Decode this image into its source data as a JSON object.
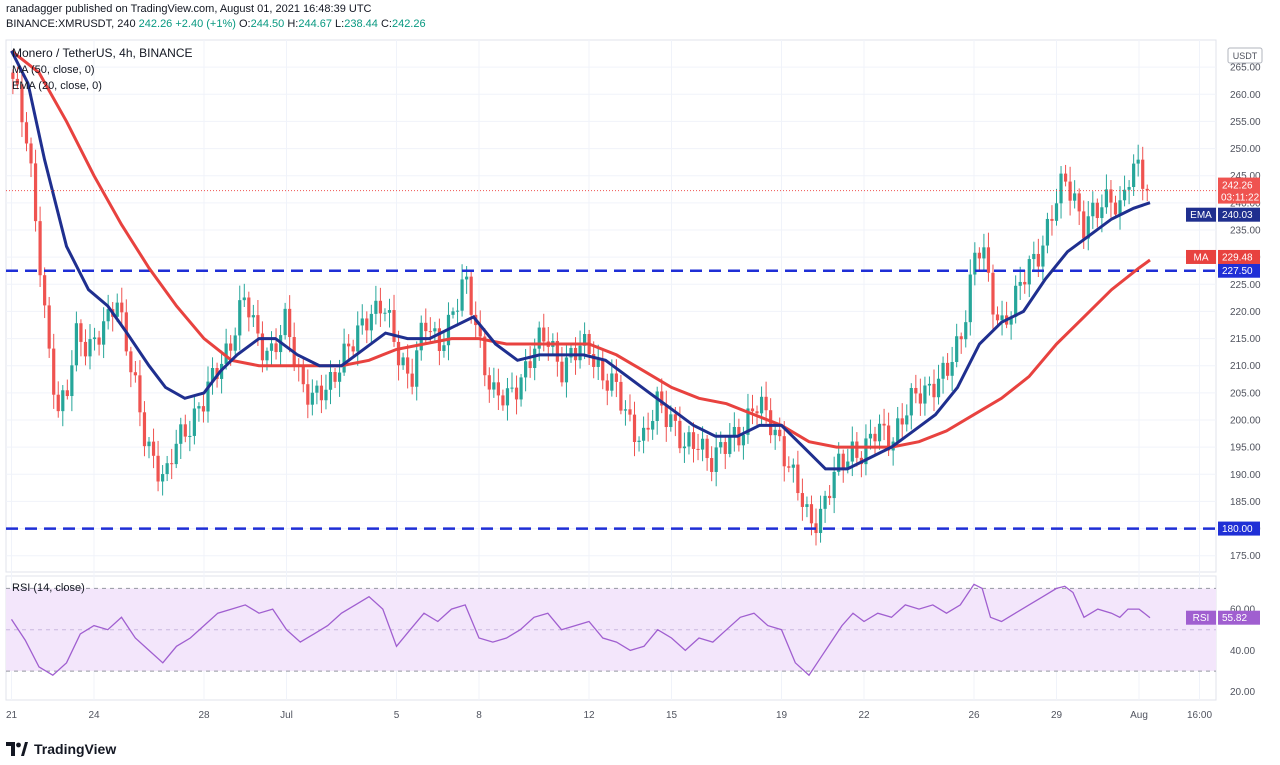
{
  "header": {
    "published": "ranadagger published on TradingView.com, August 01, 2021 16:48:39 UTC",
    "symbol": "BINANCE:XMRUSDT, 240",
    "last": "242.26",
    "change": "+2.40 (+1%)",
    "o_label": "O:",
    "o_value": "244.50",
    "h_label": "H:",
    "h_value": "244.67",
    "l_label": "L:",
    "l_value": "238.44",
    "c_label": "C:",
    "c_value": "242.26"
  },
  "legend": {
    "title": "Monero / TetherUS, 4h, BINANCE",
    "ma": "MA (50, close, 0)",
    "ema": "EMA (20, close, 0)",
    "rsi": "RSI (14, close)"
  },
  "footer": {
    "brand": "TradingView"
  },
  "colors": {
    "ema": "#1f2f8f",
    "ma": "#e8423f",
    "support": "#1f2fd6",
    "up": "#26a69a",
    "down": "#ef5350",
    "rsi": "#a05fd0",
    "rsi_band": "#f3e6fb"
  },
  "chart_data": {
    "type": "candlestick",
    "title": "Monero / TetherUS, 4h, BINANCE",
    "currency_label": "USDT",
    "y_range": [
      172,
      270
    ],
    "y_ticks": [
      175,
      180,
      185,
      190,
      195,
      200,
      205,
      210,
      215,
      220,
      225,
      230,
      235,
      240,
      245,
      250,
      255,
      260,
      265
    ],
    "x_ticks": [
      {
        "label": "21",
        "day": 0
      },
      {
        "label": "24",
        "day": 3
      },
      {
        "label": "28",
        "day": 7
      },
      {
        "label": "Jul",
        "day": 10
      },
      {
        "label": "5",
        "day": 14
      },
      {
        "label": "8",
        "day": 17
      },
      {
        "label": "12",
        "day": 21
      },
      {
        "label": "15",
        "day": 24
      },
      {
        "label": "19",
        "day": 28
      },
      {
        "label": "22",
        "day": 31
      },
      {
        "label": "26",
        "day": 35
      },
      {
        "label": "29",
        "day": 38
      },
      {
        "label": "Aug",
        "day": 41
      },
      {
        "label": "16:00",
        "day": 43.2
      }
    ],
    "day_range": [
      -0.2,
      43.8
    ],
    "support_levels": [
      {
        "value": 227.5,
        "label": "227.50"
      },
      {
        "value": 180.0,
        "label": "180.00"
      }
    ],
    "price_tags": [
      {
        "label": "242.26",
        "sub": "03:11:22",
        "value": 242.26,
        "type": "last"
      },
      {
        "label": "240.03",
        "name": "EMA",
        "value": 240.03,
        "type": "ema"
      },
      {
        "label": "229.48",
        "name": "MA",
        "value": 229.48,
        "type": "ma"
      }
    ],
    "close_path": [
      [
        0,
        264
      ],
      [
        0.6,
        250
      ],
      [
        1.0,
        232
      ],
      [
        1.3,
        215
      ],
      [
        1.7,
        200
      ],
      [
        2.0,
        205
      ],
      [
        2.4,
        218
      ],
      [
        2.8,
        212
      ],
      [
        3.3,
        216
      ],
      [
        3.8,
        224
      ],
      [
        4.3,
        210
      ],
      [
        4.8,
        198
      ],
      [
        5.2,
        193
      ],
      [
        5.6,
        188
      ],
      [
        6.0,
        196
      ],
      [
        6.5,
        200
      ],
      [
        7.0,
        203
      ],
      [
        7.5,
        210
      ],
      [
        8.0,
        215
      ],
      [
        8.5,
        222
      ],
      [
        9.0,
        215
      ],
      [
        9.5,
        212
      ],
      [
        10.0,
        218
      ],
      [
        10.5,
        208
      ],
      [
        11.0,
        203
      ],
      [
        11.5,
        206
      ],
      [
        12.0,
        212
      ],
      [
        12.5,
        214
      ],
      [
        13.0,
        220
      ],
      [
        13.5,
        222
      ],
      [
        14.0,
        212
      ],
      [
        14.5,
        208
      ],
      [
        15.0,
        218
      ],
      [
        15.5,
        213
      ],
      [
        16.0,
        220
      ],
      [
        16.5,
        225
      ],
      [
        17.0,
        215
      ],
      [
        17.5,
        205
      ],
      [
        18.0,
        203
      ],
      [
        18.5,
        208
      ],
      [
        19.0,
        213
      ],
      [
        19.5,
        215
      ],
      [
        20.0,
        210
      ],
      [
        20.5,
        212
      ],
      [
        21.0,
        214
      ],
      [
        21.5,
        208
      ],
      [
        22.0,
        205
      ],
      [
        22.5,
        200
      ],
      [
        23.0,
        196
      ],
      [
        23.5,
        203
      ],
      [
        24.0,
        201
      ],
      [
        24.5,
        194
      ],
      [
        25.0,
        196
      ],
      [
        25.5,
        193
      ],
      [
        26.0,
        195
      ],
      [
        26.5,
        198
      ],
      [
        27.0,
        203
      ],
      [
        27.5,
        200
      ],
      [
        28.0,
        196
      ],
      [
        28.5,
        188
      ],
      [
        29.0,
        181
      ],
      [
        29.4,
        183
      ],
      [
        29.8,
        188
      ],
      [
        30.2,
        192
      ],
      [
        30.6,
        195
      ],
      [
        31.0,
        194
      ],
      [
        31.5,
        198
      ],
      [
        32.0,
        197
      ],
      [
        32.5,
        201
      ],
      [
        33.0,
        205
      ],
      [
        33.5,
        207
      ],
      [
        34.0,
        208
      ],
      [
        34.5,
        215
      ],
      [
        35.0,
        230
      ],
      [
        35.3,
        232
      ],
      [
        35.6,
        222
      ],
      [
        36.0,
        218
      ],
      [
        36.5,
        222
      ],
      [
        37.0,
        228
      ],
      [
        37.5,
        233
      ],
      [
        38.0,
        240
      ],
      [
        38.3,
        244
      ],
      [
        38.6,
        242
      ],
      [
        39.0,
        236
      ],
      [
        39.5,
        238
      ],
      [
        40.0,
        242
      ],
      [
        40.3,
        239
      ],
      [
        40.6,
        244
      ],
      [
        41.0,
        246
      ],
      [
        41.4,
        242.26
      ]
    ],
    "ema_20": [
      [
        0,
        268
      ],
      [
        0.6,
        262
      ],
      [
        1.2,
        248
      ],
      [
        2.0,
        232
      ],
      [
        2.8,
        224
      ],
      [
        3.5,
        221
      ],
      [
        4.2,
        216
      ],
      [
        5.0,
        210
      ],
      [
        5.6,
        206
      ],
      [
        6.3,
        204
      ],
      [
        7.0,
        205
      ],
      [
        7.6,
        209
      ],
      [
        8.2,
        212
      ],
      [
        9.0,
        215
      ],
      [
        9.6,
        215
      ],
      [
        10.4,
        212
      ],
      [
        11.2,
        210
      ],
      [
        12.0,
        210
      ],
      [
        12.8,
        213
      ],
      [
        13.6,
        216
      ],
      [
        14.4,
        215
      ],
      [
        15.2,
        215
      ],
      [
        16.0,
        217
      ],
      [
        16.8,
        219
      ],
      [
        17.6,
        214
      ],
      [
        18.4,
        211
      ],
      [
        19.2,
        212
      ],
      [
        20.0,
        212
      ],
      [
        20.8,
        212
      ],
      [
        21.6,
        211
      ],
      [
        22.4,
        208
      ],
      [
        23.2,
        205
      ],
      [
        24.0,
        202
      ],
      [
        24.8,
        199
      ],
      [
        25.6,
        197
      ],
      [
        26.4,
        197
      ],
      [
        27.2,
        199
      ],
      [
        28.0,
        199
      ],
      [
        28.8,
        195
      ],
      [
        29.6,
        191
      ],
      [
        30.4,
        191
      ],
      [
        31.2,
        193
      ],
      [
        32.0,
        195
      ],
      [
        32.8,
        198
      ],
      [
        33.6,
        201
      ],
      [
        34.4,
        206
      ],
      [
        35.2,
        214
      ],
      [
        36.0,
        218
      ],
      [
        36.8,
        220
      ],
      [
        37.6,
        226
      ],
      [
        38.4,
        231
      ],
      [
        39.2,
        234
      ],
      [
        40.0,
        237
      ],
      [
        40.8,
        239
      ],
      [
        41.4,
        240.03
      ]
    ],
    "ma_50": [
      [
        0,
        268
      ],
      [
        1.0,
        264
      ],
      [
        2.0,
        255
      ],
      [
        3.0,
        245
      ],
      [
        4.0,
        236
      ],
      [
        5.0,
        228
      ],
      [
        6.0,
        221
      ],
      [
        7.0,
        215
      ],
      [
        8.0,
        211
      ],
      [
        9.0,
        210
      ],
      [
        10.0,
        210
      ],
      [
        11.0,
        210
      ],
      [
        12.0,
        210
      ],
      [
        13.0,
        211
      ],
      [
        14.0,
        213
      ],
      [
        15.0,
        214
      ],
      [
        16.0,
        215
      ],
      [
        17.0,
        215
      ],
      [
        18.0,
        214
      ],
      [
        19.0,
        214
      ],
      [
        20.0,
        214
      ],
      [
        21.0,
        214
      ],
      [
        22.0,
        212
      ],
      [
        23.0,
        209
      ],
      [
        24.0,
        206
      ],
      [
        25.0,
        204
      ],
      [
        26.0,
        203
      ],
      [
        27.0,
        201
      ],
      [
        28.0,
        199
      ],
      [
        29.0,
        196
      ],
      [
        30.0,
        195
      ],
      [
        31.0,
        195
      ],
      [
        32.0,
        195
      ],
      [
        33.0,
        196
      ],
      [
        34.0,
        198
      ],
      [
        35.0,
        201
      ],
      [
        36.0,
        204
      ],
      [
        37.0,
        208
      ],
      [
        38.0,
        214
      ],
      [
        39.0,
        219
      ],
      [
        40.0,
        224
      ],
      [
        41.0,
        228
      ],
      [
        41.4,
        229.48
      ]
    ],
    "rsi": {
      "label": "RSI (14, close)",
      "y_range": [
        16,
        76
      ],
      "ticks": [
        20,
        40,
        60
      ],
      "band": [
        30,
        70
      ],
      "mid": 50,
      "last": 55.82,
      "last_label": "55.82",
      "path": [
        [
          0,
          55
        ],
        [
          0.5,
          45
        ],
        [
          1.0,
          32
        ],
        [
          1.5,
          28
        ],
        [
          2.0,
          34
        ],
        [
          2.5,
          48
        ],
        [
          3.0,
          52
        ],
        [
          3.5,
          50
        ],
        [
          4.0,
          56
        ],
        [
          4.5,
          46
        ],
        [
          5.0,
          40
        ],
        [
          5.5,
          34
        ],
        [
          6.0,
          42
        ],
        [
          6.5,
          46
        ],
        [
          7.0,
          52
        ],
        [
          7.5,
          58
        ],
        [
          8.0,
          60
        ],
        [
          8.5,
          62
        ],
        [
          9.0,
          58
        ],
        [
          9.5,
          60
        ],
        [
          10.0,
          50
        ],
        [
          10.5,
          44
        ],
        [
          11.0,
          48
        ],
        [
          11.5,
          52
        ],
        [
          12.0,
          58
        ],
        [
          12.5,
          62
        ],
        [
          13.0,
          66
        ],
        [
          13.5,
          60
        ],
        [
          14.0,
          42
        ],
        [
          14.5,
          50
        ],
        [
          15.0,
          58
        ],
        [
          15.5,
          54
        ],
        [
          16.0,
          60
        ],
        [
          16.5,
          62
        ],
        [
          17.0,
          46
        ],
        [
          17.5,
          44
        ],
        [
          18.0,
          46
        ],
        [
          18.5,
          50
        ],
        [
          19.0,
          56
        ],
        [
          19.5,
          58
        ],
        [
          20.0,
          50
        ],
        [
          20.5,
          52
        ],
        [
          21.0,
          54
        ],
        [
          21.5,
          46
        ],
        [
          22.0,
          44
        ],
        [
          22.5,
          40
        ],
        [
          23.0,
          42
        ],
        [
          23.5,
          50
        ],
        [
          24.0,
          46
        ],
        [
          24.5,
          40
        ],
        [
          25.0,
          46
        ],
        [
          25.5,
          44
        ],
        [
          26.0,
          50
        ],
        [
          26.5,
          56
        ],
        [
          27.0,
          58
        ],
        [
          27.5,
          52
        ],
        [
          28.0,
          50
        ],
        [
          28.5,
          34
        ],
        [
          29.0,
          28
        ],
        [
          29.4,
          36
        ],
        [
          29.8,
          44
        ],
        [
          30.2,
          52
        ],
        [
          30.6,
          58
        ],
        [
          31.0,
          54
        ],
        [
          31.5,
          58
        ],
        [
          32.0,
          56
        ],
        [
          32.5,
          62
        ],
        [
          33.0,
          60
        ],
        [
          33.5,
          62
        ],
        [
          34.0,
          58
        ],
        [
          34.5,
          62
        ],
        [
          35.0,
          72
        ],
        [
          35.3,
          70
        ],
        [
          35.6,
          56
        ],
        [
          36.0,
          54
        ],
        [
          36.5,
          58
        ],
        [
          37.0,
          62
        ],
        [
          37.5,
          66
        ],
        [
          38.0,
          70
        ],
        [
          38.3,
          71
        ],
        [
          38.6,
          68
        ],
        [
          39.0,
          56
        ],
        [
          39.5,
          60
        ],
        [
          40.0,
          58
        ],
        [
          40.3,
          56
        ],
        [
          40.6,
          60
        ],
        [
          41.0,
          60
        ],
        [
          41.4,
          55.82
        ]
      ]
    }
  }
}
